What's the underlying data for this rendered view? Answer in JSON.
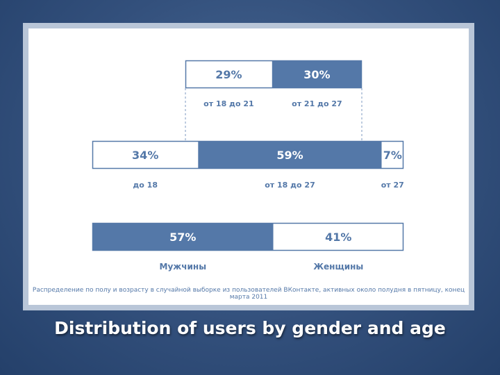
{
  "slide": {
    "title": "Distribution of users by gender and age"
  },
  "colors": {
    "fill": "#5478a8",
    "border": "#5478a8",
    "empty": "#ffffff",
    "dashed": "#7d9ac0",
    "label": "#5478a8"
  },
  "chart_data": [
    {
      "type": "bar",
      "orientation": "horizontal-stacked",
      "row": "top",
      "categories": [
        "от 18 до 21",
        "от 21 до 27"
      ],
      "values": [
        29,
        30
      ],
      "labels": [
        "29%",
        "30%"
      ],
      "filled": [
        false,
        true
      ]
    },
    {
      "type": "bar",
      "orientation": "horizontal-stacked",
      "row": "middle",
      "categories": [
        "до 18",
        "от 18 до 27",
        "от 27"
      ],
      "values": [
        34,
        59,
        7
      ],
      "labels": [
        "34%",
        "59%",
        "7%"
      ],
      "filled": [
        false,
        true,
        false
      ]
    },
    {
      "type": "bar",
      "orientation": "horizontal-stacked",
      "row": "bottom",
      "categories": [
        "Мужчины",
        "Женщины"
      ],
      "values": [
        57,
        41
      ],
      "labels": [
        "57%",
        "41%"
      ],
      "filled": [
        true,
        false
      ]
    }
  ],
  "caption": "Распределение по полу и возрасту в случайной выборке из пользователей ВКонтакте, активных около полудня в пятницу, конец марта 2011"
}
